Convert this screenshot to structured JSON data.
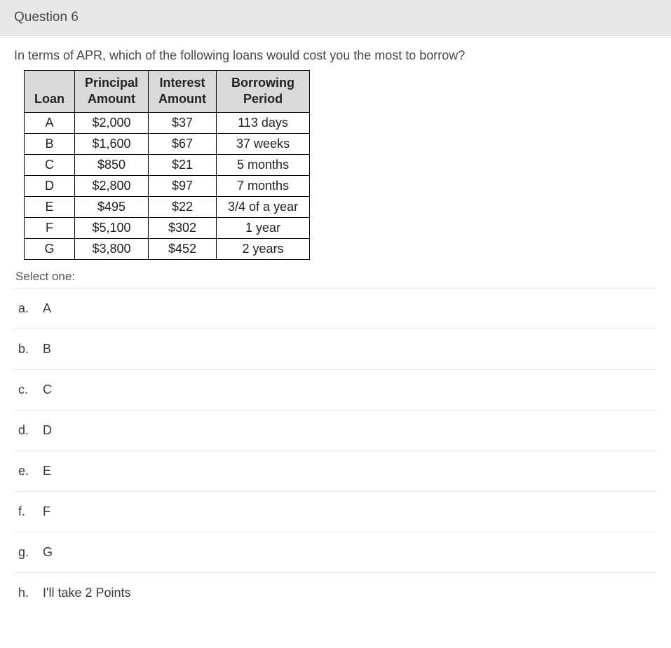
{
  "header": {
    "title": "Question 6"
  },
  "prompt": "In terms of APR, which of the following loans would cost you the most to borrow?",
  "table": {
    "columns": [
      "Loan",
      "Principal Amount",
      "Interest Amount",
      "Borrowing Period"
    ],
    "header_bg": "#d9d9d9",
    "border_color": "#000000",
    "cell_bg": "#ffffff",
    "rows": [
      [
        "A",
        "$2,000",
        "$37",
        "113 days"
      ],
      [
        "B",
        "$1,600",
        "$67",
        "37 weeks"
      ],
      [
        "C",
        "$850",
        "$21",
        "5 months"
      ],
      [
        "D",
        "$2,800",
        "$97",
        "7 months"
      ],
      [
        "E",
        "$495",
        "$22",
        "3/4 of a year"
      ],
      [
        "F",
        "$5,100",
        "$302",
        "1 year"
      ],
      [
        "G",
        "$3,800",
        "$452",
        "2 years"
      ]
    ]
  },
  "select_one_label": "Select one:",
  "options": [
    {
      "letter": "a.",
      "text": "A"
    },
    {
      "letter": "b.",
      "text": "B"
    },
    {
      "letter": "c.",
      "text": "C"
    },
    {
      "letter": "d.",
      "text": "D"
    },
    {
      "letter": "e.",
      "text": "E"
    },
    {
      "letter": "f.",
      "text": "F"
    },
    {
      "letter": "g.",
      "text": "G"
    },
    {
      "letter": "h.",
      "text": "I'll take 2 Points"
    }
  ],
  "colors": {
    "header_bg": "#e8e8e8",
    "body_bg": "#ffffff",
    "divider": "#e6e6e6",
    "text": "#3a3a3a"
  }
}
